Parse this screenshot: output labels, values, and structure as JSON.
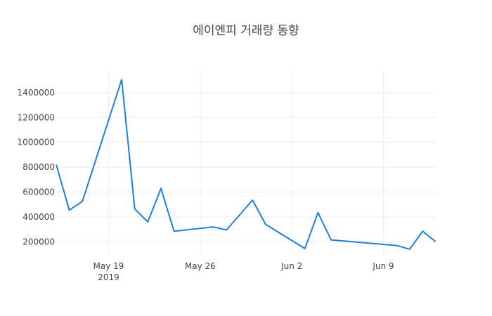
{
  "chart_data": {
    "type": "line",
    "title": "에이엔피 거래량 동향",
    "xlabel": "",
    "ylabel": "",
    "x_range": [
      "2019-05-15",
      "2019-06-13"
    ],
    "y_range": [
      100000,
      1580000
    ],
    "y_ticks": [
      200000,
      400000,
      600000,
      800000,
      1000000,
      1200000,
      1400000
    ],
    "y_tick_labels": [
      "200000",
      "400000",
      "600000",
      "800000",
      "1000000",
      "1200000",
      "1400000"
    ],
    "x_ticks": [
      {
        "date": "2019-05-19",
        "label": "May 19",
        "sublabel": "2019"
      },
      {
        "date": "2019-05-26",
        "label": "May 26",
        "sublabel": ""
      },
      {
        "date": "2019-06-02",
        "label": "Jun 2",
        "sublabel": ""
      },
      {
        "date": "2019-06-09",
        "label": "Jun 9",
        "sublabel": ""
      }
    ],
    "grid": true,
    "line_color": "#1f7fe0",
    "series": [
      {
        "points": [
          {
            "x": "2019-05-15",
            "y": 820000
          },
          {
            "x": "2019-05-16",
            "y": 455000
          },
          {
            "x": "2019-05-17",
            "y": 525000
          },
          {
            "x": "2019-05-20",
            "y": 1505000
          },
          {
            "x": "2019-05-21",
            "y": 465000
          },
          {
            "x": "2019-05-22",
            "y": 360000
          },
          {
            "x": "2019-05-23",
            "y": 630000
          },
          {
            "x": "2019-05-24",
            "y": 285000
          },
          {
            "x": "2019-05-27",
            "y": 320000
          },
          {
            "x": "2019-05-28",
            "y": 295000
          },
          {
            "x": "2019-05-30",
            "y": 535000
          },
          {
            "x": "2019-05-31",
            "y": 340000
          },
          {
            "x": "2019-06-03",
            "y": 145000
          },
          {
            "x": "2019-06-04",
            "y": 435000
          },
          {
            "x": "2019-06-05",
            "y": 215000
          },
          {
            "x": "2019-06-10",
            "y": 170000
          },
          {
            "x": "2019-06-11",
            "y": 140000
          },
          {
            "x": "2019-06-12",
            "y": 285000
          },
          {
            "x": "2019-06-13",
            "y": 200000
          }
        ]
      }
    ]
  }
}
